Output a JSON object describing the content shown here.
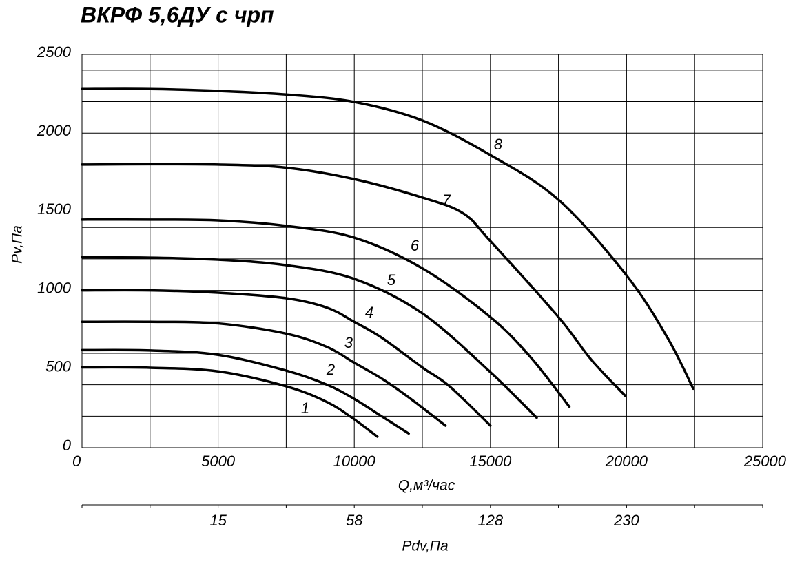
{
  "chart_data": {
    "type": "line",
    "title": "ВКРФ 5,6ДУ с чрп",
    "x_label": "Q,м³/час",
    "y_label": "Pv,Па",
    "x2_label": "Pdv,Па",
    "xlim": [
      0,
      25000
    ],
    "ylim": [
      0,
      2500
    ],
    "xticks": [
      0,
      5000,
      10000,
      15000,
      20000,
      25000
    ],
    "yticks": [
      0,
      500,
      1000,
      1500,
      2000,
      2500
    ],
    "xgrid": [
      0,
      2500,
      5000,
      7500,
      10000,
      12500,
      15000,
      17500,
      20000,
      22500,
      25000
    ],
    "ygrid": [
      0,
      200,
      400,
      600,
      800,
      1000,
      1200,
      1400,
      1600,
      1800,
      2000,
      2200,
      2400,
      2500
    ],
    "x2tick_marks": [
      0,
      2500,
      5000,
      7500,
      10000,
      12500,
      15000,
      17500,
      20000,
      22500,
      25000
    ],
    "x2ticks": [
      {
        "value": 5000,
        "label": "15"
      },
      {
        "value": 10000,
        "label": "58"
      },
      {
        "value": 15000,
        "label": "128"
      },
      {
        "value": 20000,
        "label": "230"
      }
    ],
    "grid": true,
    "color": "#000000",
    "series": [
      {
        "name": "1",
        "x": [
          0,
          2500,
          5000,
          7500,
          9000,
          10000,
          10850
        ],
        "values": [
          510,
          508,
          485,
          390,
          290,
          180,
          70
        ]
      },
      {
        "name": "2",
        "x": [
          0,
          2500,
          5000,
          7500,
          9000,
          10000,
          11000,
          12000
        ],
        "values": [
          620,
          618,
          590,
          490,
          400,
          310,
          200,
          90
        ]
      },
      {
        "name": "3",
        "x": [
          0,
          2500,
          5000,
          7500,
          9000,
          10000,
          11000,
          12000,
          13350
        ],
        "values": [
          800,
          800,
          790,
          725,
          640,
          540,
          440,
          320,
          140
        ]
      },
      {
        "name": "4",
        "x": [
          0,
          2500,
          5000,
          7500,
          9000,
          10000,
          11000,
          12500,
          13500,
          15000
        ],
        "values": [
          1000,
          1000,
          985,
          950,
          890,
          800,
          700,
          510,
          390,
          140
        ]
      },
      {
        "name": "5",
        "x": [
          0,
          2500,
          5000,
          7500,
          10000,
          12500,
          15000,
          16700
        ],
        "values": [
          1210,
          1208,
          1195,
          1160,
          1073,
          854,
          480,
          190
        ]
      },
      {
        "name": "6",
        "x": [
          0,
          2500,
          5000,
          7500,
          10000,
          12500,
          15000,
          16500,
          17900
        ],
        "values": [
          1450,
          1450,
          1445,
          1410,
          1335,
          1140,
          830,
          570,
          260
        ]
      },
      {
        "name": "7",
        "x": [
          0,
          2500,
          5000,
          7500,
          10000,
          12500,
          14000,
          15000,
          17500,
          18700,
          19950
        ],
        "values": [
          1800,
          1802,
          1800,
          1780,
          1707,
          1590,
          1490,
          1313,
          830,
          560,
          330
        ]
      },
      {
        "name": "8",
        "x": [
          0,
          2500,
          5000,
          7500,
          10000,
          12500,
          15000,
          17500,
          20000,
          21500,
          22450
        ],
        "values": [
          2280,
          2280,
          2268,
          2245,
          2198,
          2080,
          1860,
          1576,
          1095,
          700,
          375
        ]
      }
    ]
  }
}
